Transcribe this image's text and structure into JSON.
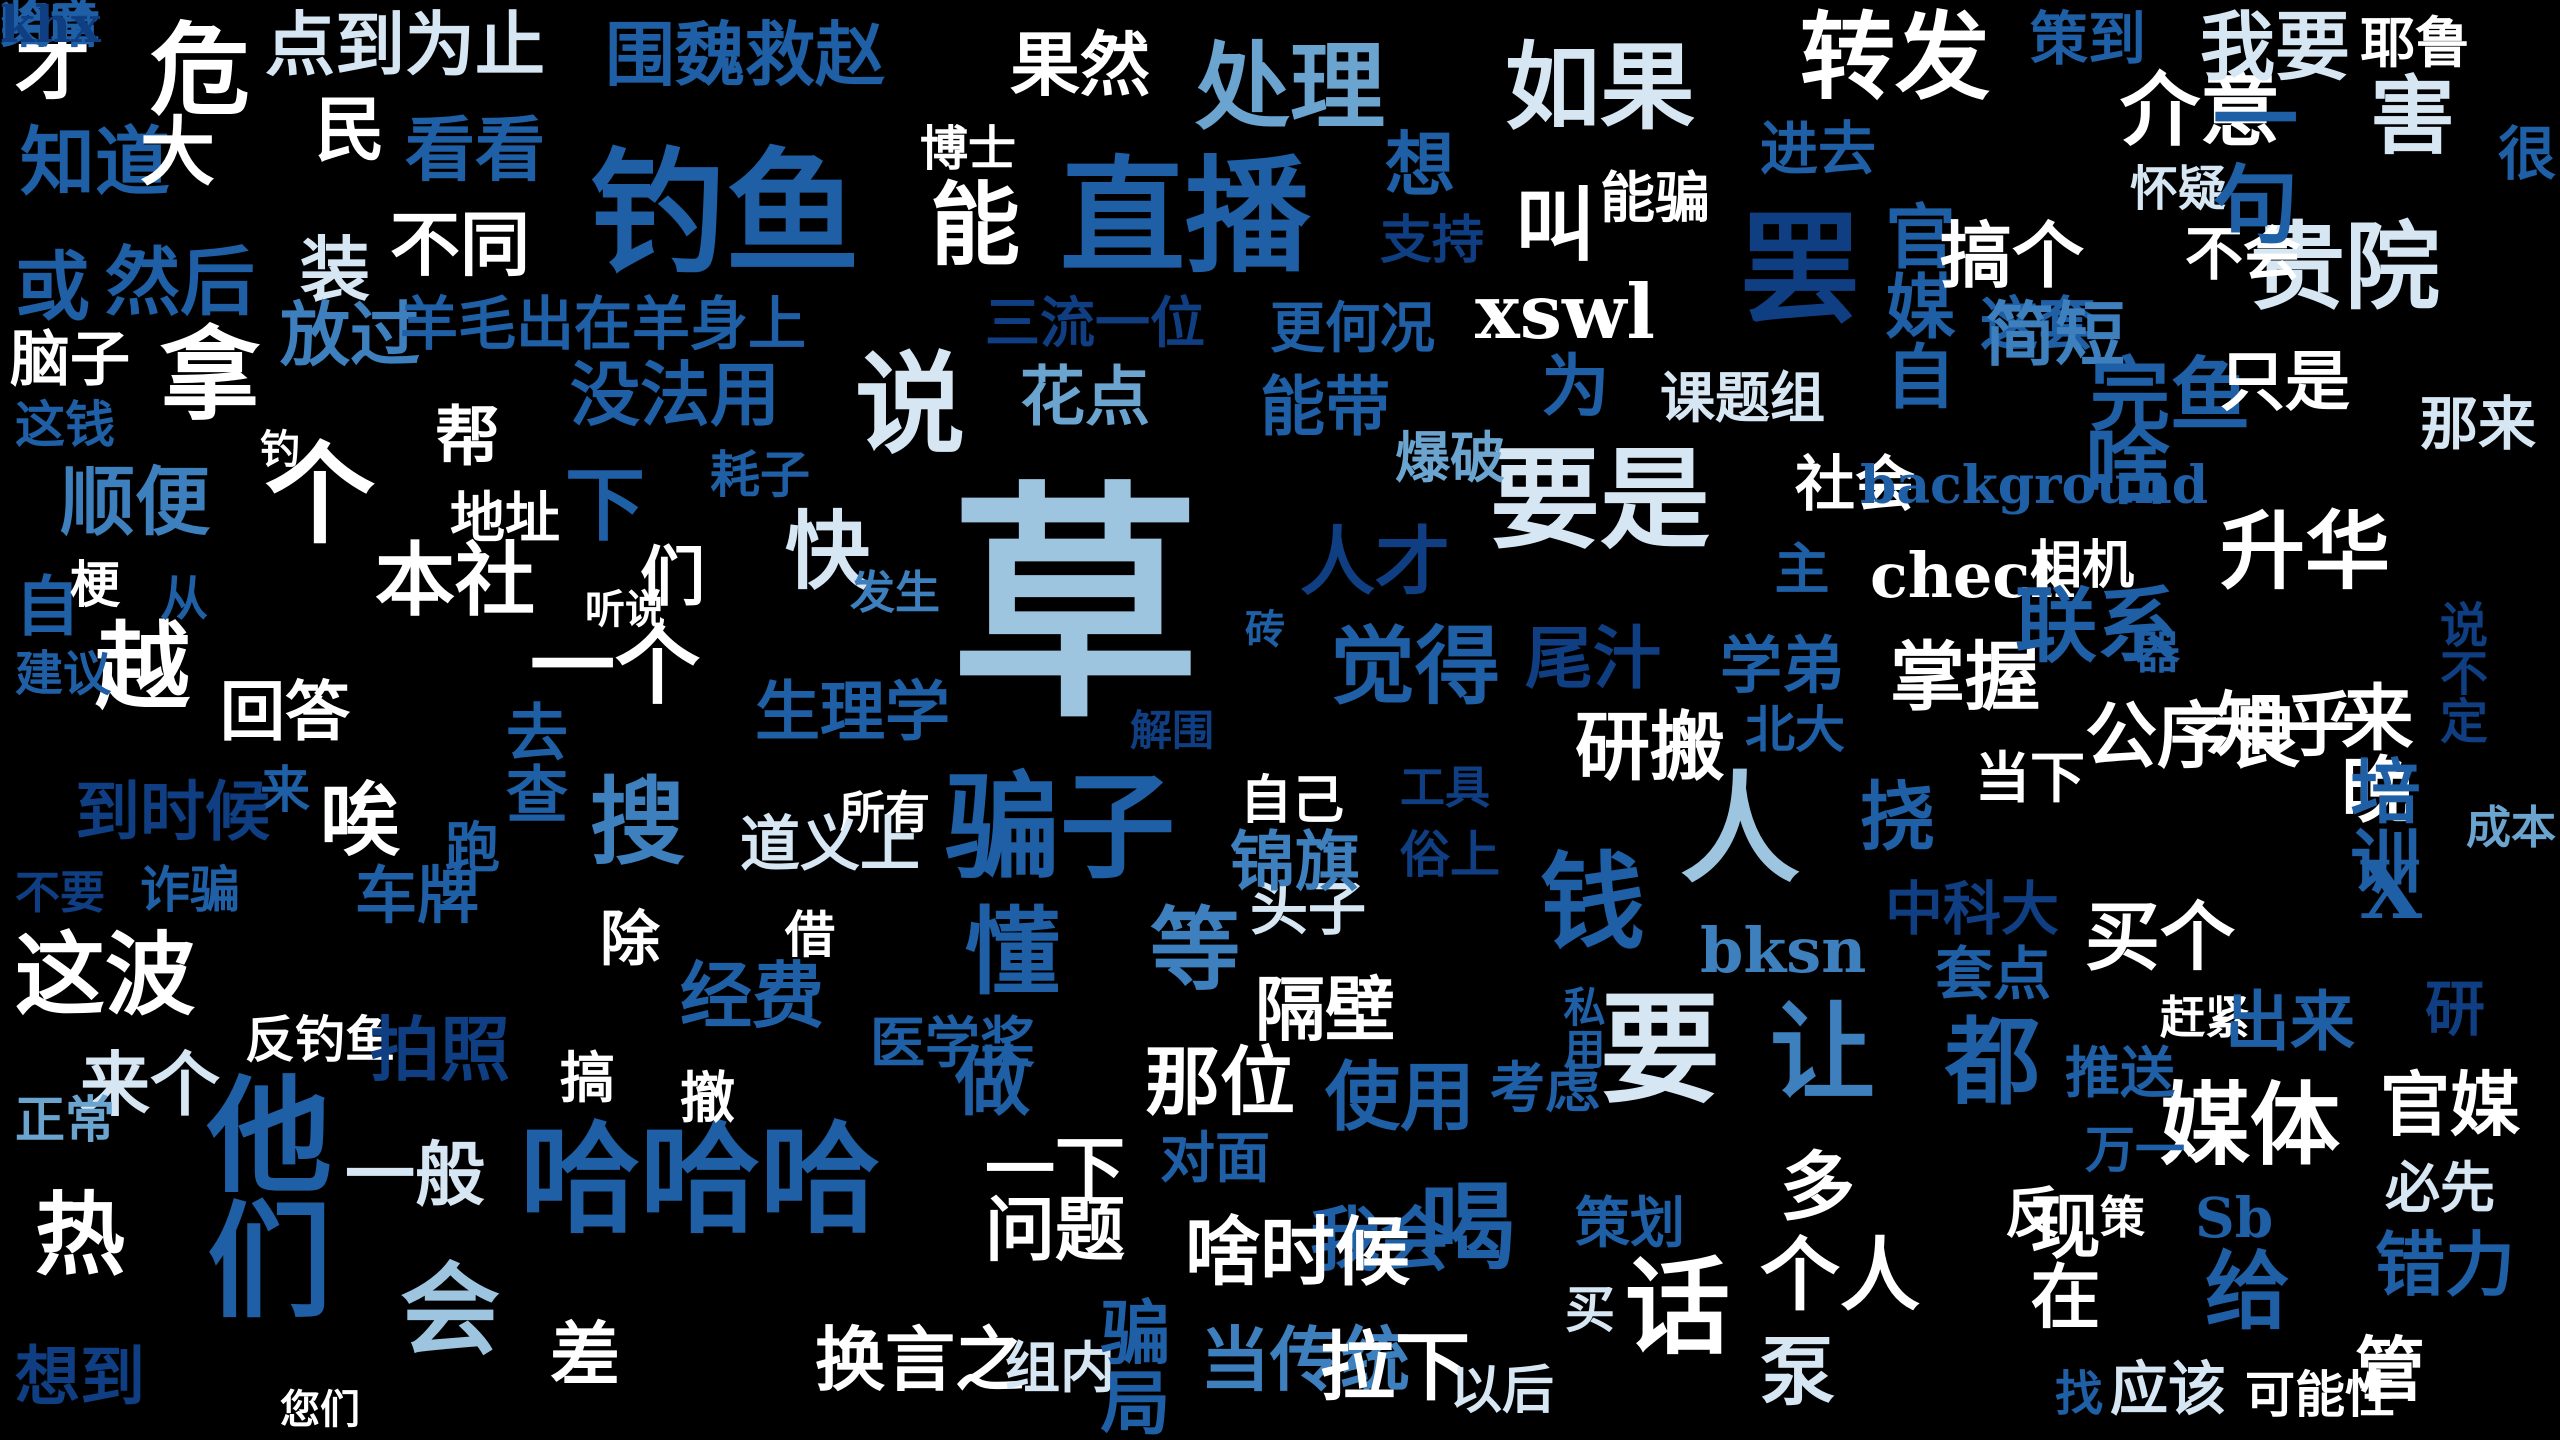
{
  "word_cloud": {
    "background": "#000000",
    "palette": {
      "white": "#ffffff",
      "ice": "#d6e6f2",
      "light": "#9ec5df",
      "sky": "#6aa4cf",
      "mid": "#3d80bd",
      "deep": "#1e5fa6",
      "navy": "#0f3f82"
    },
    "words": [
      {
        "text": "草",
        "color": "light",
        "vertical": false
      },
      {
        "text": "钓鱼",
        "color": "deep",
        "vertical": false
      },
      {
        "text": "直播",
        "color": "deep",
        "vertical": false
      },
      {
        "text": "罢",
        "color": "navy",
        "vertical": false
      },
      {
        "text": "他们",
        "color": "deep",
        "vertical": true
      },
      {
        "text": "哈哈哈",
        "color": "deep",
        "vertical": false
      },
      {
        "text": "骗子",
        "color": "deep",
        "vertical": false
      },
      {
        "text": "要是",
        "color": "ice",
        "vertical": false
      },
      {
        "text": "人",
        "color": "light",
        "vertical": false
      },
      {
        "text": "要",
        "color": "ice",
        "vertical": false
      },
      {
        "text": "个",
        "color": "white",
        "vertical": false
      },
      {
        "text": "说",
        "color": "ice",
        "vertical": false
      },
      {
        "text": "钱",
        "color": "deep",
        "vertical": false
      },
      {
        "text": "让",
        "color": "mid",
        "vertical": false
      },
      {
        "text": "话",
        "color": "white",
        "vertical": false
      },
      {
        "text": "会",
        "color": "light",
        "vertical": false
      },
      {
        "text": "都",
        "color": "deep",
        "vertical": false
      },
      {
        "text": "处理",
        "color": "sky",
        "vertical": false
      },
      {
        "text": "转发",
        "color": "white",
        "vertical": false
      },
      {
        "text": "如果",
        "color": "ice",
        "vertical": false
      },
      {
        "text": "贵院",
        "color": "ice",
        "vertical": false
      },
      {
        "text": "媒体",
        "color": "white",
        "vertical": false
      },
      {
        "text": "能",
        "color": "white",
        "vertical": false
      },
      {
        "text": "危",
        "color": "white",
        "vertical": false
      },
      {
        "text": "拿",
        "color": "white",
        "vertical": false
      },
      {
        "text": "这波",
        "color": "white",
        "vertical": false
      },
      {
        "text": "越",
        "color": "white",
        "vertical": false
      },
      {
        "text": "热",
        "color": "white",
        "vertical": false
      },
      {
        "text": "搜",
        "color": "mid",
        "vertical": false
      },
      {
        "text": "喝",
        "color": "deep",
        "vertical": false
      },
      {
        "text": "懂",
        "color": "deep",
        "vertical": false
      },
      {
        "text": "等",
        "color": "mid",
        "vertical": false
      },
      {
        "text": "觉得",
        "color": "deep",
        "vertical": false
      },
      {
        "text": "升华",
        "color": "white",
        "vertical": false
      },
      {
        "text": "啥",
        "color": "deep",
        "vertical": false
      },
      {
        "text": "给",
        "color": "deep",
        "vertical": false
      },
      {
        "text": "X",
        "color": "deep",
        "vertical": false
      },
      {
        "text": "个人",
        "color": "white",
        "vertical": false
      },
      {
        "text": "一个",
        "color": "white",
        "vertical": false
      },
      {
        "text": "快",
        "color": "ice",
        "vertical": false
      },
      {
        "text": "下",
        "color": "deep",
        "vertical": false
      },
      {
        "text": "唉",
        "color": "white",
        "vertical": false
      },
      {
        "text": "果然",
        "color": "white",
        "vertical": false
      },
      {
        "text": "围魏救赵",
        "color": "deep",
        "vertical": false
      },
      {
        "text": "点到为止",
        "color": "ice",
        "vertical": false
      },
      {
        "text": "看看",
        "color": "deep",
        "vertical": false
      },
      {
        "text": "民",
        "color": "white",
        "vertical": false
      },
      {
        "text": "才",
        "color": "white",
        "vertical": false
      },
      {
        "text": "知道",
        "color": "deep",
        "vertical": false
      },
      {
        "text": "大",
        "color": "white",
        "vertical": false
      },
      {
        "text": "或",
        "color": "deep",
        "vertical": false
      },
      {
        "text": "然后",
        "color": "deep",
        "vertical": false
      },
      {
        "text": "装",
        "color": "ice",
        "vertical": false
      },
      {
        "text": "不同",
        "color": "white",
        "vertical": false
      },
      {
        "text": "放过",
        "color": "mid",
        "vertical": false
      },
      {
        "text": "羊毛出在羊身上",
        "color": "deep",
        "vertical": false
      },
      {
        "text": "脑子",
        "color": "white",
        "vertical": false
      },
      {
        "text": "这钱",
        "color": "deep",
        "vertical": false
      },
      {
        "text": "钓",
        "color": "white",
        "vertical": false
      },
      {
        "text": "帮",
        "color": "white",
        "vertical": false
      },
      {
        "text": "顺便",
        "color": "mid",
        "vertical": false
      },
      {
        "text": "地址",
        "color": "white",
        "vertical": false
      },
      {
        "text": "耗子",
        "color": "deep",
        "vertical": false
      },
      {
        "text": "没法用",
        "color": "deep",
        "vertical": false
      },
      {
        "text": "花点",
        "color": "sky",
        "vertical": false
      },
      {
        "text": "能带",
        "color": "deep",
        "vertical": false
      },
      {
        "text": "三流一位",
        "color": "navy",
        "vertical": false
      },
      {
        "text": "更何况",
        "color": "deep",
        "vertical": false
      },
      {
        "text": "支持",
        "color": "navy",
        "vertical": false
      },
      {
        "text": "想",
        "color": "deep",
        "vertical": false
      },
      {
        "text": "博士",
        "color": "white",
        "vertical": false
      },
      {
        "text": "叫",
        "color": "white",
        "vertical": false
      },
      {
        "text": "能骗",
        "color": "white",
        "vertical": false
      },
      {
        "text": "xswl",
        "color": "white",
        "vertical": false
      },
      {
        "text": "为",
        "color": "deep",
        "vertical": true
      },
      {
        "text": "爆破",
        "color": "sky",
        "vertical": false
      },
      {
        "text": "课题组",
        "color": "ice",
        "vertical": false
      },
      {
        "text": "官媒自",
        "color": "deep",
        "vertical": true
      },
      {
        "text": "搞个",
        "color": "white",
        "vertical": false
      },
      {
        "text": "这套",
        "color": "deep",
        "vertical": false
      },
      {
        "text": "简短",
        "color": "mid",
        "vertical": false
      },
      {
        "text": "完鱼",
        "color": "deep",
        "vertical": false
      },
      {
        "text": "只是",
        "color": "white",
        "vertical": false
      },
      {
        "text": "那来",
        "color": "ice",
        "vertical": false
      },
      {
        "text": "不会",
        "color": "white",
        "vertical": false
      },
      {
        "text": "怀疑",
        "color": "ice",
        "vertical": false
      },
      {
        "text": "很",
        "color": "deep",
        "vertical": false
      },
      {
        "text": "介意",
        "color": "white",
        "vertical": false
      },
      {
        "text": "一句",
        "color": "deep",
        "vertical": true
      },
      {
        "text": "害",
        "color": "ice",
        "vertical": false
      },
      {
        "text": "策到",
        "color": "deep",
        "vertical": false
      },
      {
        "text": "我要",
        "color": "ice",
        "vertical": false
      },
      {
        "text": "耶鲁",
        "color": "white",
        "vertical": false
      },
      {
        "text": "进去",
        "color": "deep",
        "vertical": false
      },
      {
        "text": "社会",
        "color": "white",
        "vertical": false
      },
      {
        "text": "background",
        "color": "deep",
        "vertical": false
      },
      {
        "text": "主",
        "color": "deep",
        "vertical": true
      },
      {
        "text": "check",
        "color": "white",
        "vertical": false
      },
      {
        "text": "相机",
        "color": "white",
        "vertical": false
      },
      {
        "text": "人才",
        "color": "navy",
        "vertical": false
      },
      {
        "text": "尾汁",
        "color": "navy",
        "vertical": false
      },
      {
        "text": "学弟",
        "color": "deep",
        "vertical": false
      },
      {
        "text": "研搬",
        "color": "white",
        "vertical": false
      },
      {
        "text": "北大",
        "color": "deep",
        "vertical": false
      },
      {
        "text": "掌握",
        "color": "white",
        "vertical": false
      },
      {
        "text": "联系",
        "color": "deep",
        "vertical": false
      },
      {
        "text": "器",
        "color": "deep",
        "vertical": false
      },
      {
        "text": "说不定",
        "color": "navy",
        "vertical": true
      },
      {
        "text": "公序良",
        "color": "white",
        "vertical": false
      },
      {
        "text": "知乎",
        "color": "white",
        "vertical": false
      },
      {
        "text": "来晚",
        "color": "white",
        "vertical": true
      },
      {
        "text": "培训",
        "color": "deep",
        "vertical": true
      },
      {
        "text": "成本",
        "color": "sky",
        "vertical": false
      },
      {
        "text": "当下",
        "color": "white",
        "vertical": false
      },
      {
        "text": "挠",
        "color": "deep",
        "vertical": false
      },
      {
        "text": "自",
        "color": "deep",
        "vertical": false
      },
      {
        "text": "梗",
        "color": "white",
        "vertical": false
      },
      {
        "text": "从",
        "color": "deep",
        "vertical": false
      },
      {
        "text": "听说",
        "color": "white",
        "vertical": false
      },
      {
        "text": "本社",
        "color": "white",
        "vertical": false
      },
      {
        "text": "们",
        "color": "white",
        "vertical": false
      },
      {
        "text": "发生",
        "color": "mid",
        "vertical": false
      },
      {
        "text": "建议",
        "color": "deep",
        "vertical": false
      },
      {
        "text": "回答",
        "color": "white",
        "vertical": false
      },
      {
        "text": "去查",
        "color": "deep",
        "vertical": true
      },
      {
        "text": "生理学",
        "color": "deep",
        "vertical": false
      },
      {
        "text": "砖",
        "color": "deep",
        "vertical": false
      },
      {
        "text": "解围",
        "color": "navy",
        "vertical": false
      },
      {
        "text": "来",
        "color": "deep",
        "vertical": false
      },
      {
        "text": "到时候",
        "color": "navy",
        "vertical": false
      },
      {
        "text": "跑",
        "color": "deep",
        "vertical": false
      },
      {
        "text": "所有",
        "color": "white",
        "vertical": false
      },
      {
        "text": "自己",
        "color": "white",
        "vertical": false
      },
      {
        "text": "工具",
        "color": "navy",
        "vertical": false
      },
      {
        "text": "不要",
        "color": "navy",
        "vertical": false
      },
      {
        "text": "诈骗",
        "color": "deep",
        "vertical": false
      },
      {
        "text": "车牌",
        "color": "deep",
        "vertical": false
      },
      {
        "text": "道义上",
        "color": "ice",
        "vertical": false
      },
      {
        "text": "头子",
        "color": "ice",
        "vertical": false
      },
      {
        "text": "锦旗",
        "color": "mid",
        "vertical": false
      },
      {
        "text": "俗上",
        "color": "navy",
        "vertical": false
      },
      {
        "text": "除",
        "color": "white",
        "vertical": false
      },
      {
        "text": "借",
        "color": "white",
        "vertical": false
      },
      {
        "text": "bksn",
        "color": "mid",
        "vertical": false
      },
      {
        "text": "中科大",
        "color": "navy",
        "vertical": false
      },
      {
        "text": "套点",
        "color": "deep",
        "vertical": false
      },
      {
        "text": "买个",
        "color": "white",
        "vertical": false
      },
      {
        "text": "经费",
        "color": "deep",
        "vertical": false
      },
      {
        "text": "医学奖",
        "color": "deep",
        "vertical": false
      },
      {
        "text": "隔壁",
        "color": "white",
        "vertical": false
      },
      {
        "text": "私用",
        "color": "deep",
        "vertical": true
      },
      {
        "text": "反钓鱼",
        "color": "white",
        "vertical": false
      },
      {
        "text": "拍照",
        "color": "navy",
        "vertical": false
      },
      {
        "text": "赶紧",
        "color": "white",
        "vertical": false
      },
      {
        "text": "出来",
        "color": "deep",
        "vertical": false
      },
      {
        "text": "研",
        "color": "navy",
        "vertical": false
      },
      {
        "text": "来个",
        "color": "ice",
        "vertical": false
      },
      {
        "text": "正常",
        "color": "sky",
        "vertical": false
      },
      {
        "text": "搞",
        "color": "white",
        "vertical": false
      },
      {
        "text": "撤",
        "color": "white",
        "vertical": false
      },
      {
        "text": "做",
        "color": "deep",
        "vertical": false
      },
      {
        "text": "那位",
        "color": "white",
        "vertical": false
      },
      {
        "text": "使用",
        "color": "deep",
        "vertical": false
      },
      {
        "text": "考虑",
        "color": "deep",
        "vertical": false
      },
      {
        "text": "推送",
        "color": "deep",
        "vertical": false
      },
      {
        "text": "官媒",
        "color": "white",
        "vertical": false
      },
      {
        "text": "多",
        "color": "white",
        "vertical": false
      },
      {
        "text": "万一",
        "color": "deep",
        "vertical": false
      },
      {
        "text": "一般",
        "color": "ice",
        "vertical": false
      },
      {
        "text": "一下",
        "color": "white",
        "vertical": false
      },
      {
        "text": "对面",
        "color": "deep",
        "vertical": false
      },
      {
        "text": "必先",
        "color": "ice",
        "vertical": false
      },
      {
        "text": "问题",
        "color": "white",
        "vertical": false
      },
      {
        "text": "我会",
        "color": "deep",
        "vertical": false
      },
      {
        "text": "啥时候",
        "color": "white",
        "vertical": false
      },
      {
        "text": "策划",
        "color": "deep",
        "vertical": false
      },
      {
        "text": "反",
        "color": "white",
        "vertical": false
      },
      {
        "text": "策",
        "color": "white",
        "vertical": false
      },
      {
        "text": "Sb",
        "color": "deep",
        "vertical": false
      },
      {
        "text": "错力",
        "color": "deep",
        "vertical": false
      },
      {
        "text": "现在",
        "color": "white",
        "vertical": true
      },
      {
        "text": "差",
        "color": "white",
        "vertical": false
      },
      {
        "text": "换言之",
        "color": "white",
        "vertical": false
      },
      {
        "text": "组内",
        "color": "ice",
        "vertical": false
      },
      {
        "text": "骗局",
        "color": "deep",
        "vertical": true
      },
      {
        "text": "当传统",
        "color": "mid",
        "vertical": false
      },
      {
        "text": "拉下",
        "color": "white",
        "vertical": false
      },
      {
        "text": "买",
        "color": "ice",
        "vertical": false
      },
      {
        "text": "以后",
        "color": "ice",
        "vertical": false
      },
      {
        "text": "泵",
        "color": "ice",
        "vertical": false
      },
      {
        "text": "找",
        "color": "deep",
        "vertical": false
      },
      {
        "text": "应该",
        "color": "ice",
        "vertical": false
      },
      {
        "text": "可能性",
        "color": "white",
        "vertical": false
      },
      {
        "text": "管",
        "color": "white",
        "vertical": false
      },
      {
        "text": "想到",
        "color": "navy",
        "vertical": false
      },
      {
        "text": "您们",
        "color": "white",
        "vertical": false
      },
      {
        "text": "奖章",
        "color": "deep",
        "vertical": false
      },
      {
        "text": "哈哈",
        "color": "deep",
        "vertical": false
      },
      {
        "text": "khx",
        "color": "navy",
        "vertical": false
      }
    ]
  }
}
